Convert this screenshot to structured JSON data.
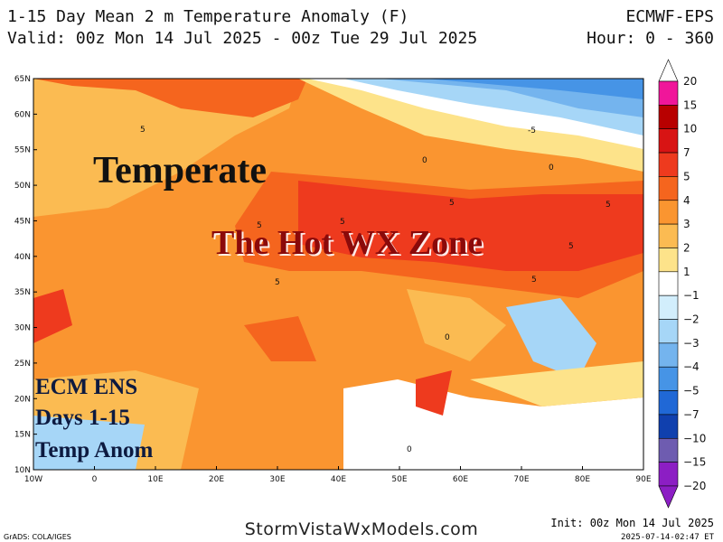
{
  "header": {
    "title": "1-15 Day Mean 2 m Temperature Anomaly (F)",
    "valid": "Valid: 00z Mon 14 Jul 2025 - 00z Tue 29 Jul 2025",
    "model": "ECMWF-EPS",
    "hours": "Hour: 0 - 360"
  },
  "map": {
    "lat_labels": [
      "65N",
      "60N",
      "55N",
      "50N",
      "45N",
      "40N",
      "35N",
      "30N",
      "25N",
      "20N",
      "15N",
      "10N"
    ],
    "lon_labels": [
      "10W",
      "0",
      "10E",
      "20E",
      "30E",
      "40E",
      "50E",
      "60E",
      "70E",
      "80E",
      "90E"
    ],
    "contour_labels": [
      "5",
      "5",
      "5",
      "5",
      "5",
      "5",
      "5",
      "5",
      "-5",
      "0",
      "0",
      "0",
      "0"
    ],
    "overlay": {
      "region_a": "Temperate",
      "region_b": "The Hot WX Zone",
      "note": [
        "ECM ENS",
        "Days 1-15",
        "Temp Anom"
      ]
    }
  },
  "colorbar": {
    "labels": [
      "20",
      "15",
      "10",
      "7",
      "5",
      "4",
      "3",
      "2",
      "1",
      "−1",
      "−2",
      "−3",
      "−4",
      "−5",
      "−7",
      "−10",
      "−15",
      "−20"
    ],
    "colors": [
      "#f0169a",
      "#b80000",
      "#d81414",
      "#ee3a1e",
      "#f5651e",
      "#fa9530",
      "#fbbb52",
      "#fde38a",
      "#ffffff",
      "#d2eefc",
      "#a6d6f7",
      "#74b4ee",
      "#4694e6",
      "#2068d6",
      "#1040ae",
      "#6e5cb0",
      "#8c1ec4"
    ]
  },
  "footer": {
    "credit": "GrADS: COLA/IGES",
    "site": "StormVistaWxModels.com",
    "init": "Init: 00z Mon 14 Jul 2025",
    "stamp": "2025-07-14-02:47 ET"
  }
}
